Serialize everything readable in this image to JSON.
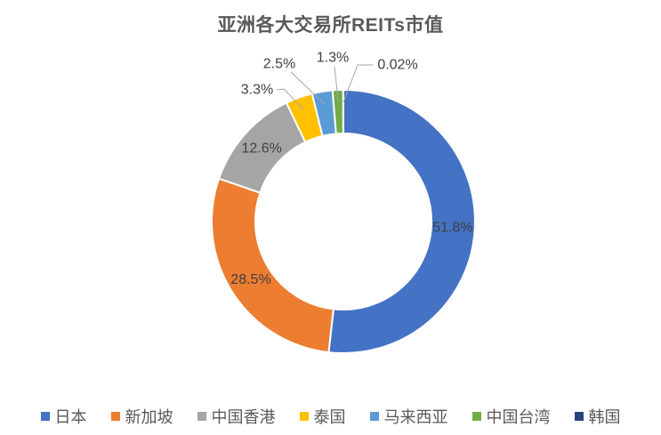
{
  "title": "亚洲各大交易所REITs市值",
  "chart_data": {
    "type": "pie",
    "subtype": "doughnut",
    "title": "亚洲各大交易所REITs市值",
    "unit": "%",
    "legend_position": "bottom",
    "start_angle_deg": 0,
    "direction": "clockwise",
    "categories": [
      "日本",
      "新加坡",
      "中国香港",
      "泰国",
      "马来西亚",
      "中国台湾",
      "韩国"
    ],
    "values": [
      51.8,
      28.5,
      12.6,
      3.3,
      2.5,
      1.3,
      0.02
    ],
    "labels": [
      "51.8%",
      "28.5%",
      "12.6%",
      "3.3%",
      "2.5%",
      "1.3%",
      "0.02%"
    ],
    "colors": [
      "#4472C4",
      "#ED7D31",
      "#A5A5A5",
      "#FFC000",
      "#5B9BD5",
      "#70AD47",
      "#264478"
    ],
    "label_color": "#404040",
    "leader_line_color": "#A6A6A6",
    "title_color": "#595959",
    "legend_text_color": "#595959"
  }
}
